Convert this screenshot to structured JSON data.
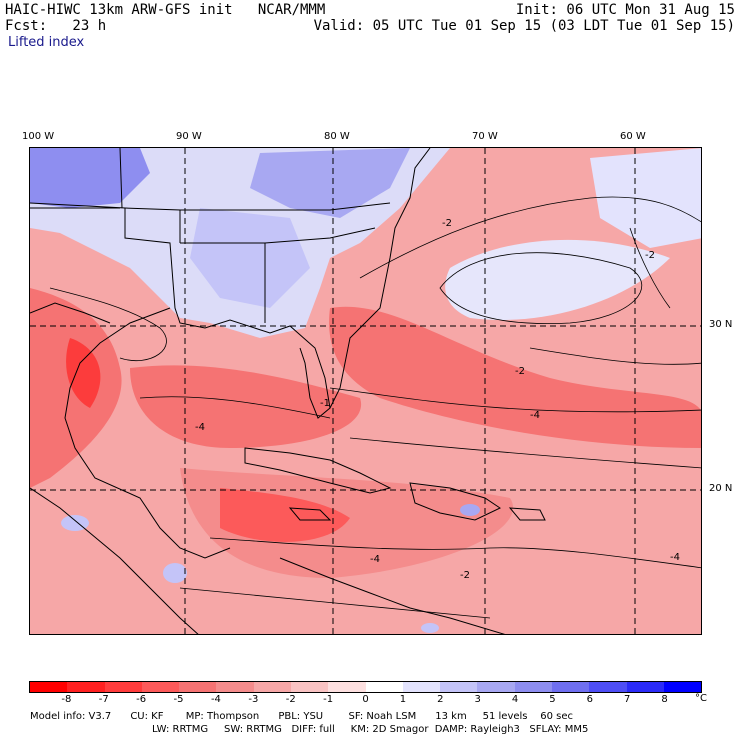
{
  "header": {
    "title": "HAIC-HIWC 13km ARW-GFS init   NCAR/MMM",
    "init": "Init: 06 UTC Mon 31 Aug 15",
    "forecast": "Fcst:   23 h",
    "valid": "Valid: 05 UTC Tue 01 Sep 15 (03 LDT Tue 01 Sep 15)",
    "parameter": "Lifted index"
  },
  "map": {
    "lon_labels": [
      "100 W",
      "90 W",
      "80 W",
      "70 W",
      "60 W"
    ],
    "lat_labels": [
      "30 N",
      "20 N"
    ],
    "contour_labels": [
      "-2",
      "-4",
      "-1"
    ]
  },
  "colorbar": {
    "ticks": [
      "-8",
      "-7",
      "-6",
      "-5",
      "-4",
      "-3",
      "-2",
      "-1",
      "0",
      "1",
      "2",
      "3",
      "4",
      "5",
      "6",
      "7",
      "8"
    ],
    "unit": "°C",
    "colors": [
      "#ff0000",
      "#ff2020",
      "#ff3c3c",
      "#fc5a5a",
      "#f57373",
      "#f48c8c",
      "#f6a7a7",
      "#f9c3c3",
      "#fde0e0",
      "#ffffff",
      "#e3e3fd",
      "#c4c4f8",
      "#a8a8f2",
      "#8e8ef0",
      "#6f6ff0",
      "#4e4ef5",
      "#2b2bf8",
      "#0000ff"
    ]
  },
  "footer": {
    "line1": "Model info: V3.7      CU: KF       MP: Thompson      PBL: YSU        SF: Noah LSM      13 km     51 levels    60 sec",
    "line2": "LW: RRTMG     SW: RRTMG   DIFF: full     KM: 2D Smagor  DAMP: Rayleigh3   SFLAY: MM5"
  }
}
